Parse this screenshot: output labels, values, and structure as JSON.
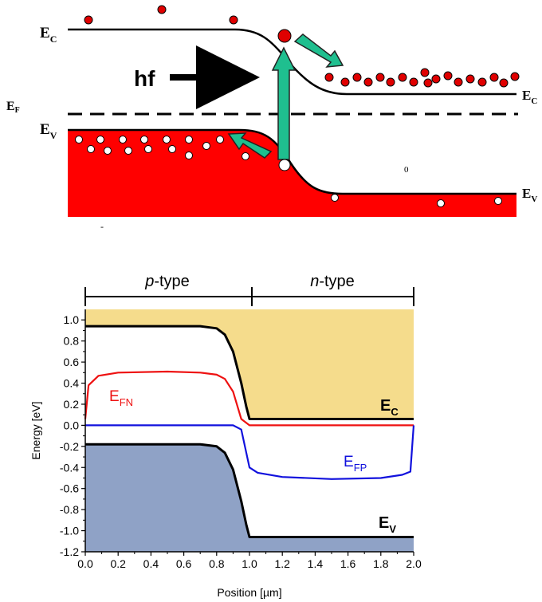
{
  "band_diagram": {
    "labels": {
      "ec_left": "E",
      "ec_left_sub": "C",
      "ec_right": "E",
      "ec_right_sub": "C",
      "ef": "E",
      "ef_sub": "F",
      "ev_left": "E",
      "ev_left_sub": "V",
      "ev_right": "E",
      "ev_right_sub": "V",
      "photon": "hf",
      "zero_mark": "0",
      "dash_mark": "-"
    },
    "colors": {
      "valence_fill": "#ff0000",
      "arrow_fill": "#1fbf8f",
      "electron": "#e00000",
      "hole": "#ffffff"
    }
  },
  "chart_data": {
    "type": "line",
    "regions": [
      {
        "label_italic": "p",
        "label_rest": "-type",
        "x_start": 0.0,
        "x_end": 1.0
      },
      {
        "label_italic": "n",
        "label_rest": "-type",
        "x_start": 1.0,
        "x_end": 2.0
      }
    ],
    "xlabel": "Position [µm]",
    "ylabel": "Energy [eV]",
    "xlim": [
      0.0,
      2.0
    ],
    "ylim": [
      -1.2,
      1.1
    ],
    "xticks": [
      "0.0",
      "0.2",
      "0.4",
      "0.6",
      "0.8",
      "1.0",
      "1.2",
      "1.4",
      "1.6",
      "1.8",
      "2.0"
    ],
    "yticks": [
      "1.0",
      "0.8",
      "0.6",
      "0.4",
      "0.2",
      "0.0",
      "-0.2",
      "-0.4",
      "-0.6",
      "-0.8",
      "-1.0",
      "-1.2"
    ],
    "series": [
      {
        "name": "E_C",
        "label_main": "E",
        "label_sub": "C",
        "color": "#000000",
        "x": [
          0.0,
          0.7,
          0.8,
          0.85,
          0.9,
          0.95,
          0.98,
          1.0,
          1.5,
          2.0
        ],
        "y": [
          0.94,
          0.94,
          0.92,
          0.86,
          0.7,
          0.4,
          0.18,
          0.06,
          0.06,
          0.06
        ]
      },
      {
        "name": "E_V",
        "label_main": "E",
        "label_sub": "V",
        "color": "#000000",
        "x": [
          0.0,
          0.7,
          0.8,
          0.85,
          0.9,
          0.95,
          0.98,
          1.0,
          1.5,
          2.0
        ],
        "y": [
          -0.18,
          -0.18,
          -0.2,
          -0.26,
          -0.42,
          -0.72,
          -0.94,
          -1.06,
          -1.06,
          -1.06
        ]
      },
      {
        "name": "E_FN",
        "label_main": "E",
        "label_sub": "FN",
        "color": "#ee1111",
        "x": [
          0.0,
          0.02,
          0.08,
          0.2,
          0.5,
          0.7,
          0.8,
          0.85,
          0.9,
          0.95,
          1.0,
          1.5,
          2.0
        ],
        "y": [
          0.06,
          0.38,
          0.47,
          0.5,
          0.51,
          0.5,
          0.48,
          0.44,
          0.32,
          0.06,
          0.0,
          0.0,
          0.0
        ]
      },
      {
        "name": "E_FP",
        "label_main": "E",
        "label_sub": "FP",
        "color": "#1111dd",
        "x": [
          0.0,
          0.9,
          0.95,
          1.0,
          1.05,
          1.2,
          1.5,
          1.8,
          1.93,
          1.98,
          2.0
        ],
        "y": [
          0.0,
          0.0,
          -0.04,
          -0.4,
          -0.45,
          -0.49,
          -0.51,
          -0.5,
          -0.47,
          -0.44,
          0.0
        ]
      }
    ],
    "shaded": [
      {
        "name": "conduction-band-region",
        "color": "#f5dc8c"
      },
      {
        "name": "valence-band-region",
        "color": "#8fa2c6"
      }
    ]
  }
}
